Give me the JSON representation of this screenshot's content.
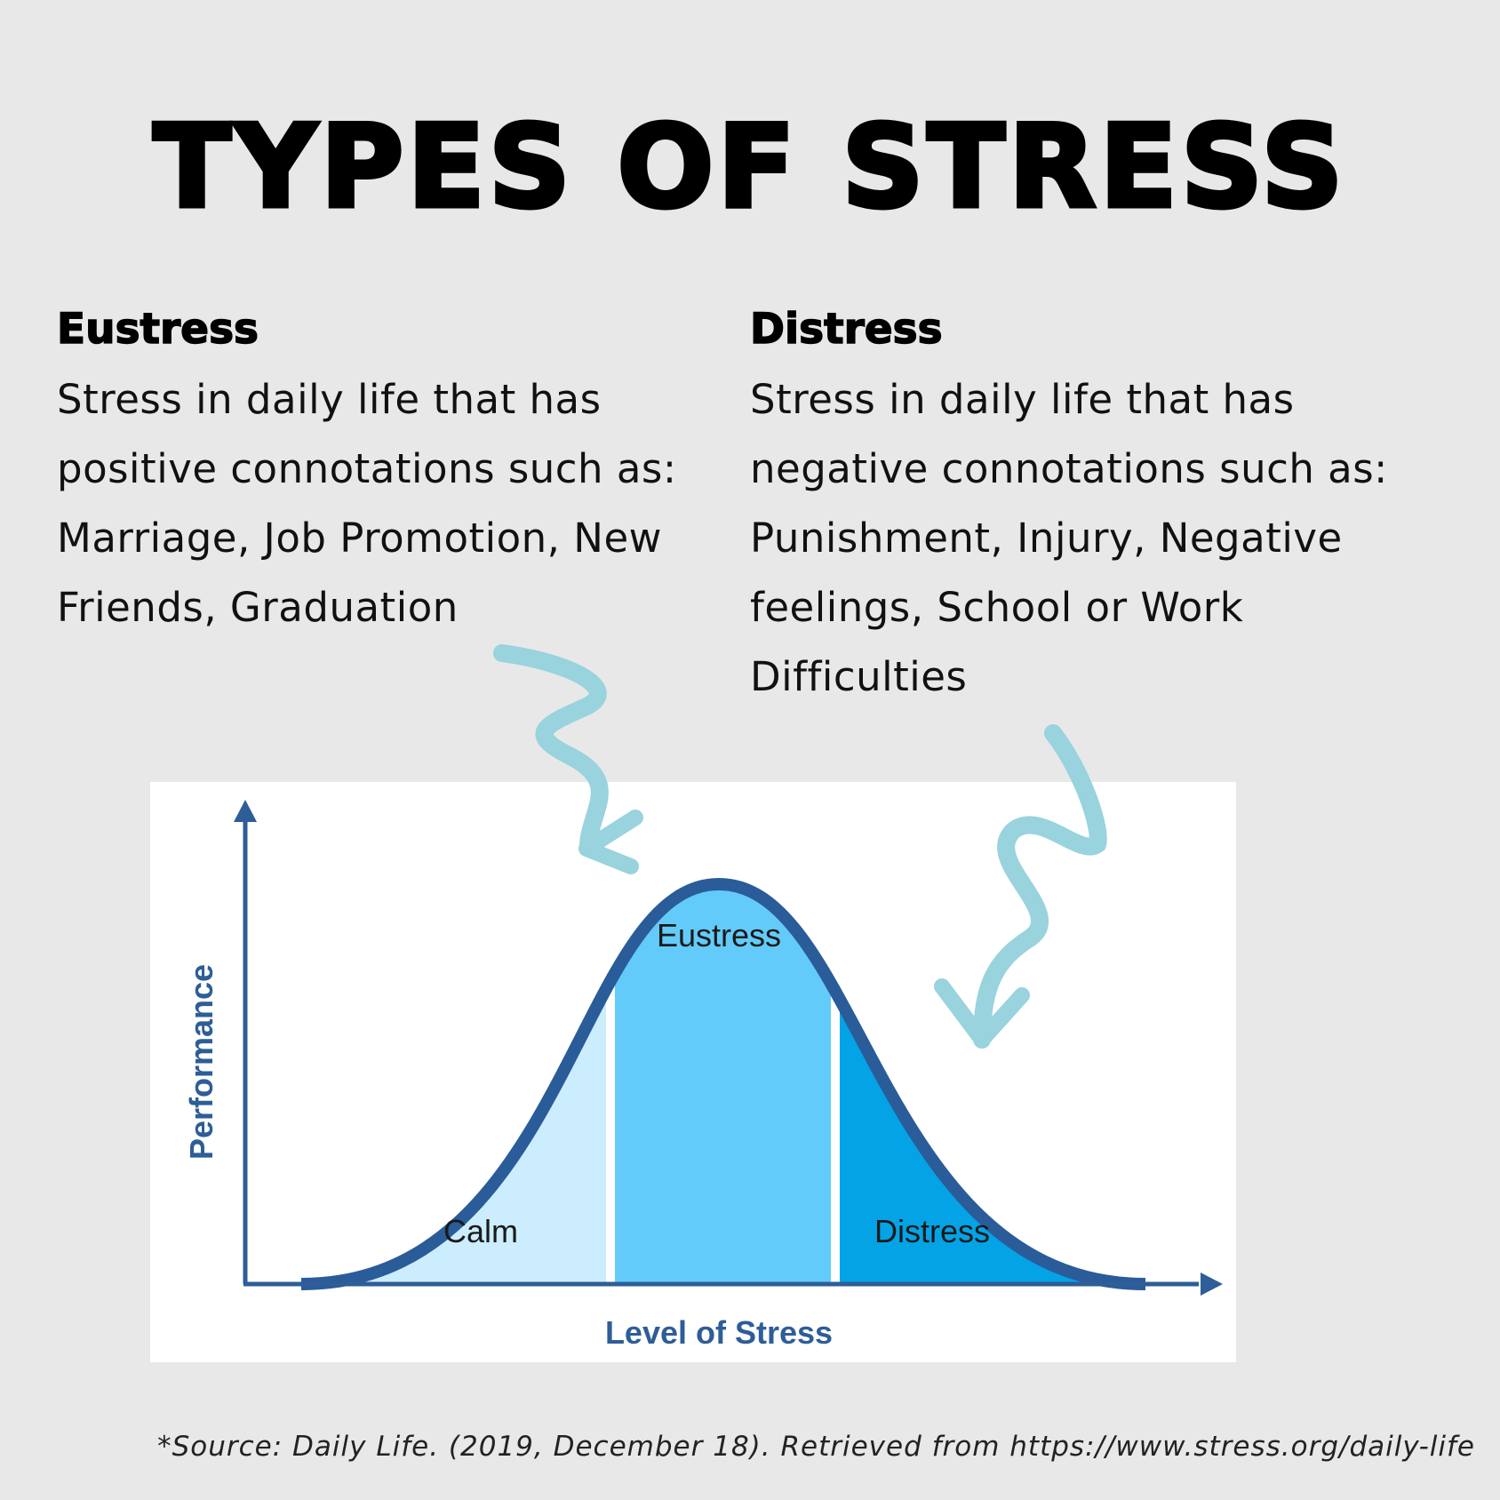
{
  "title": "TYPES OF STRESS",
  "eustress": {
    "heading": "Eustress",
    "description": "Stress in daily life that has positive connotations such as: Marriage, Job Promotion, New Friends, Graduation"
  },
  "distress": {
    "heading": "Distress",
    "description": "Stress in daily life that has negative connotations such as: Punishment, Injury, Negative feelings, School or Work Difficulties"
  },
  "chart": {
    "y_axis_label": "Performance",
    "x_axis_label": "Level of Stress",
    "regions": [
      {
        "label": "Calm",
        "color": "#ccedfd"
      },
      {
        "label": "Eustress",
        "color": "#63cbfa"
      },
      {
        "label": "Distress",
        "color": "#04a3e6"
      }
    ],
    "curve_color": "#2a5c9a",
    "axis_color": "#2e5d97",
    "label_color": "#2e5d97"
  },
  "arrow_color": "#98d3de",
  "source": "*Source: Daily Life. (2019, December 18). Retrieved from https://www.stress.org/daily-life"
}
